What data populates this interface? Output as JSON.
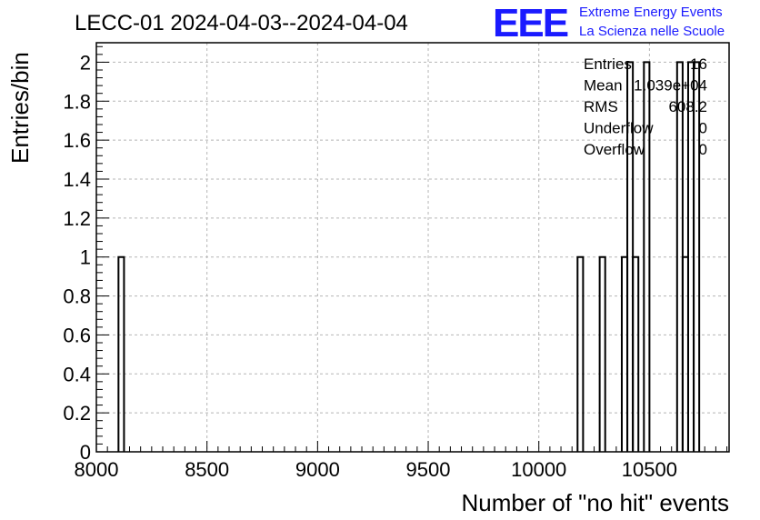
{
  "chart_data": {
    "type": "bar",
    "title": "LECC-01 2024-04-03--2024-04-04",
    "xlabel": "Number of \"no hit\" events",
    "ylabel": "Entries/bin",
    "xlim": [
      8000,
      10860
    ],
    "ylim": [
      0,
      2.1
    ],
    "xticks": [
      8000,
      8500,
      9000,
      9500,
      10000,
      10500
    ],
    "yticks": [
      0,
      0.2,
      0.4,
      0.6,
      0.8,
      1,
      1.2,
      1.4,
      1.6,
      1.8,
      2
    ],
    "grid": true,
    "histogram": "step",
    "bins": [
      {
        "x0": 8100,
        "x1": 8125,
        "value": 1
      },
      {
        "x0": 10175,
        "x1": 10200,
        "value": 1
      },
      {
        "x0": 10275,
        "x1": 10300,
        "value": 1
      },
      {
        "x0": 10375,
        "x1": 10400,
        "value": 1
      },
      {
        "x0": 10400,
        "x1": 10425,
        "value": 2
      },
      {
        "x0": 10425,
        "x1": 10450,
        "value": 1
      },
      {
        "x0": 10475,
        "x1": 10500,
        "value": 2
      },
      {
        "x0": 10625,
        "x1": 10650,
        "value": 2
      },
      {
        "x0": 10650,
        "x1": 10675,
        "value": 1
      },
      {
        "x0": 10675,
        "x1": 10700,
        "value": 2
      },
      {
        "x0": 10700,
        "x1": 10725,
        "value": 2
      }
    ],
    "stats": [
      {
        "label": "Entries",
        "value": "16"
      },
      {
        "label": "Mean",
        "value": "1.039e+04"
      },
      {
        "label": "RMS",
        "value": "608.2"
      },
      {
        "label": "Underflow",
        "value": "0"
      },
      {
        "label": "Overflow",
        "value": "0"
      }
    ]
  },
  "logo": {
    "text": "EEE",
    "line1": "Extreme Energy Events",
    "line2": "La Scienza nelle Scuole"
  }
}
